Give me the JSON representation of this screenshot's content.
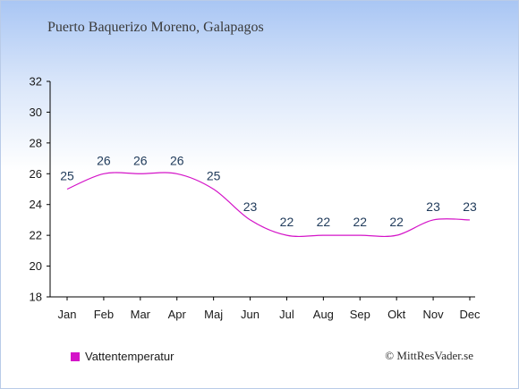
{
  "title": "Puerto Baquerizo Moreno, Galapagos",
  "legend_label": "Vattentemperatur",
  "credit": "© MittResVader.se",
  "colors": {
    "series": "#d414c8",
    "axis": "#000000"
  },
  "chart_data": {
    "type": "line",
    "title": "Puerto Baquerizo Moreno, Galapagos",
    "xlabel": "",
    "ylabel": "",
    "categories": [
      "Jan",
      "Feb",
      "Mar",
      "Apr",
      "Maj",
      "Jun",
      "Jul",
      "Aug",
      "Sep",
      "Okt",
      "Nov",
      "Dec"
    ],
    "series": [
      {
        "name": "Vattentemperatur",
        "values": [
          25,
          26,
          26,
          26,
          25,
          23,
          22,
          22,
          22,
          22,
          23,
          23
        ]
      }
    ],
    "ylim": [
      18,
      32
    ],
    "yticks": [
      18,
      20,
      22,
      24,
      26,
      28,
      30,
      32
    ],
    "grid": false,
    "legend": "bottom-left"
  }
}
